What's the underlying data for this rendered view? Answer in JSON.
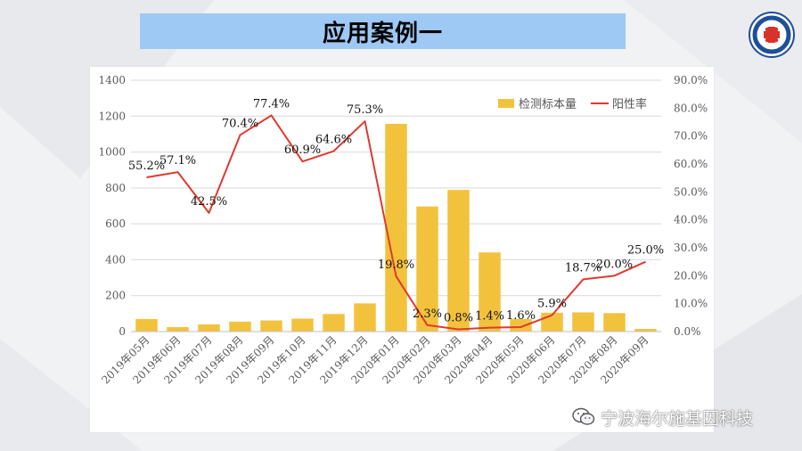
{
  "slide": {
    "title": "应用案例一",
    "watermark": "宁波海尔施基因科技"
  },
  "colors": {
    "banner": "#9ec9f5",
    "bar": "#f3c23d",
    "line": "#e03a2f"
  },
  "chart_data": {
    "type": "bar+line",
    "categories": [
      "2019年05月",
      "2019年06月",
      "2019年07月",
      "2019年08月",
      "2019年09月",
      "2019年10月",
      "2019年11月",
      "2019年12月",
      "2020年01月",
      "2020年02月",
      "2020年03月",
      "2020年04月",
      "2020年05月",
      "2020年06月",
      "2020年07月",
      "2020年08月",
      "2020年09月"
    ],
    "series": [
      {
        "name": "检测标本量",
        "type": "bar",
        "axis": "left",
        "values": [
          70,
          25,
          40,
          55,
          62,
          72,
          98,
          157,
          1157,
          697,
          789,
          441,
          70,
          105,
          107,
          103,
          15
        ]
      },
      {
        "name": "阳性率",
        "type": "line",
        "axis": "right",
        "values": [
          55.2,
          57.1,
          42.5,
          70.4,
          77.4,
          60.9,
          64.6,
          75.3,
          19.8,
          2.3,
          0.8,
          1.4,
          1.6,
          5.9,
          18.7,
          20.0,
          25.0
        ],
        "labels": [
          "55.2%",
          "57.1%",
          "42.5%",
          "70.4%",
          "77.4%",
          "60.9%",
          "64.6%",
          "75.3%",
          "19.8%",
          "2.3%",
          "0.8%",
          "1.4%",
          "1.6%",
          "5.9%",
          "18.7%",
          "20.0%",
          "25.0%"
        ]
      }
    ],
    "y_left": {
      "min": 0,
      "max": 1400,
      "ticks": [
        "0",
        "200",
        "400",
        "600",
        "800",
        "1000",
        "1200",
        "1400"
      ]
    },
    "y_right": {
      "min": 0,
      "max": 90,
      "ticks": [
        "0.0%",
        "10.0%",
        "20.0%",
        "30.0%",
        "40.0%",
        "50.0%",
        "60.0%",
        "70.0%",
        "80.0%",
        "90.0%"
      ]
    },
    "grid": true,
    "legend_position": "top-right"
  }
}
